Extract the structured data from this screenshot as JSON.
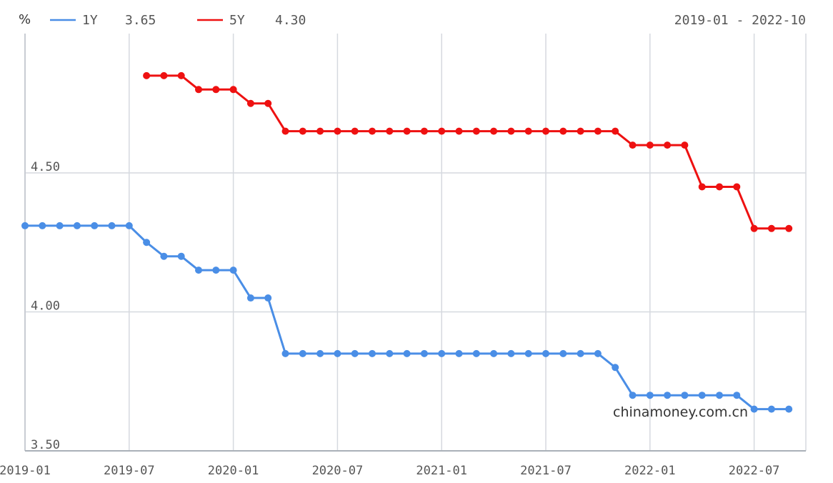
{
  "header": {
    "unit": "%",
    "range_label": "2019-01 - 2022-10"
  },
  "legend": [
    {
      "name": "1Y",
      "value": "3.65",
      "color": "#4a8ee6"
    },
    {
      "name": "5Y",
      "value": "4.30",
      "color": "#ee1111"
    }
  ],
  "watermark": "chinamoney.com.cn",
  "chart_data": {
    "type": "line",
    "x_start": "2019-01",
    "x_end": "2022-10",
    "xticks": [
      "2019-01",
      "2019-07",
      "2020-01",
      "2020-07",
      "2021-01",
      "2021-07",
      "2022-01",
      "2022-07"
    ],
    "yticks": [
      "3.50",
      "4.00",
      "4.50"
    ],
    "ylim": [
      3.5,
      4.99
    ],
    "grid": true,
    "legend_position": "top-left",
    "series": [
      {
        "name": "1Y",
        "color": "#4a8ee6",
        "start": "2019-01",
        "values": [
          4.31,
          4.31,
          4.31,
          4.31,
          4.31,
          4.31,
          4.31,
          4.25,
          4.2,
          4.2,
          4.15,
          4.15,
          4.15,
          4.05,
          4.05,
          3.85,
          3.85,
          3.85,
          3.85,
          3.85,
          3.85,
          3.85,
          3.85,
          3.85,
          3.85,
          3.85,
          3.85,
          3.85,
          3.85,
          3.85,
          3.85,
          3.85,
          3.85,
          3.85,
          3.8,
          3.7,
          3.7,
          3.7,
          3.7,
          3.7,
          3.7,
          3.7,
          3.65,
          3.65,
          3.65
        ]
      },
      {
        "name": "5Y",
        "color": "#ee1111",
        "start": "2019-08",
        "values": [
          4.85,
          4.85,
          4.85,
          4.8,
          4.8,
          4.8,
          4.75,
          4.75,
          4.65,
          4.65,
          4.65,
          4.65,
          4.65,
          4.65,
          4.65,
          4.65,
          4.65,
          4.65,
          4.65,
          4.65,
          4.65,
          4.65,
          4.65,
          4.65,
          4.65,
          4.65,
          4.65,
          4.65,
          4.6,
          4.6,
          4.6,
          4.6,
          4.45,
          4.45,
          4.45,
          4.3,
          4.3,
          4.3
        ]
      }
    ]
  }
}
